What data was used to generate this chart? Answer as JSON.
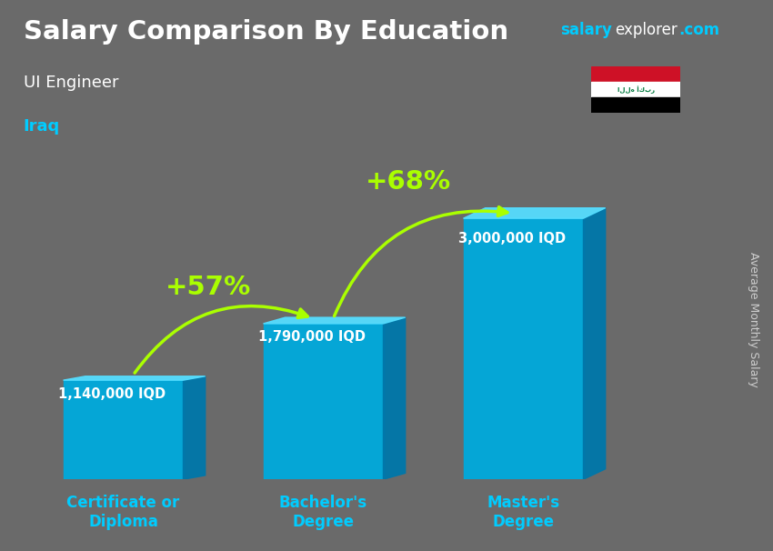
{
  "title": "Salary Comparison By Education",
  "subtitle": "UI Engineer",
  "country": "Iraq",
  "ylabel": "Average Monthly Salary",
  "categories": [
    "Certificate or\nDiploma",
    "Bachelor's\nDegree",
    "Master's\nDegree"
  ],
  "values": [
    1140000,
    1790000,
    3000000
  ],
  "value_labels": [
    "1,140,000 IQD",
    "1,790,000 IQD",
    "3,000,000 IQD"
  ],
  "pct_labels": [
    "+57%",
    "+68%"
  ],
  "bar_color_top": "#55ddff",
  "bar_color_main": "#00aadd",
  "bar_color_side": "#0077aa",
  "background_color": "#6a6a6a",
  "title_color": "#ffffff",
  "subtitle_color": "#ffffff",
  "country_color": "#00ccff",
  "value_label_color": "#ffffff",
  "pct_color": "#aaff00",
  "arrow_color": "#aaff00",
  "xlabel_color": "#00ccff",
  "ylabel_color": "#cccccc",
  "bar_positions": [
    1.0,
    3.0,
    5.0
  ],
  "bar_width": 1.2,
  "ylim": [
    0,
    3800000
  ],
  "site_salary_color": "#00ccff",
  "site_explorer_color": "#ffffff",
  "site_com_color": "#00ccff"
}
